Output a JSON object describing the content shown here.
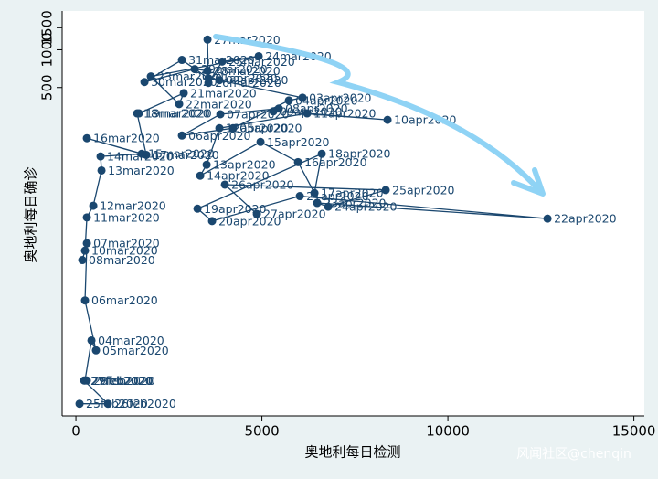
{
  "chart_data": {
    "type": "scatter",
    "x_label": "奥地利每日检测",
    "y_label": "奥地利每日确诊",
    "watermark": "风闻社区@chenqin",
    "color": "#1a476f",
    "log_y": true,
    "xlim": [
      -370,
      15280
    ],
    "ylim": [
      1.2,
      2040
    ],
    "xticks": [
      0,
      5000,
      10000,
      15000
    ],
    "yticks": [
      500,
      1000,
      1500
    ],
    "point_labels": [
      "25feb2020",
      "26feb2020",
      "27feb2020",
      "28feb2020",
      "29feb2020",
      "04mar2020",
      "05mar2020",
      "06mar2020",
      "07mar2020",
      "08mar2020",
      "10mar2020",
      "11mar2020",
      "12mar2020",
      "13mar2020",
      "14mar2020",
      "15mar2020",
      "16mar2020",
      "17mar2020",
      "18mar2020",
      "19mar2020",
      "21mar2020",
      "22mar2020",
      "23mar2020",
      "24mar2020",
      "25mar2020",
      "26mar2020",
      "27mar2020",
      "28mar2020",
      "29mar2020",
      "30mar2020",
      "31mar2020",
      "01apr2020",
      "02apr2020",
      "03apr2020",
      "04apr2020",
      "05apr2020",
      "06apr2020",
      "07apr2020",
      "08apr2020",
      "09apr2020",
      "10apr2020",
      "11apr2020",
      "12apr2020",
      "13apr2020",
      "14apr2020",
      "15apr2020",
      "16apr2020",
      "17apr2020",
      "18apr2020",
      "19apr2020",
      "20apr2020",
      "21apr2020",
      "22apr2020",
      "23apr2020",
      "24apr2020",
      "25apr2020",
      "26apr2020",
      "27apr2020"
    ],
    "x": [
      98,
      860,
      220,
      295,
      245,
      418,
      540,
      245,
      295,
      172,
      245,
      295,
      467,
      688,
      663,
      1769,
      295,
      1892,
      1646,
      1695,
      2899,
      2776,
      2015,
      4914,
      3931,
      3563,
      3538,
      3538,
      3194,
      1843,
      2850,
      3563,
      3857,
      6093,
      5725,
      4226,
      2850,
      3882,
      5455,
      5307,
      8378,
      6216,
      3857,
      3514,
      3342,
      4963,
      5971,
      6413,
      6609,
      3268,
      3661,
      6020,
      12678,
      6486,
      6781,
      8329,
      4005,
      4865
    ],
    "values": [
      1.5,
      1.5,
      2.3,
      2.3,
      2.3,
      4.8,
      4,
      10,
      28.6,
      21,
      25,
      46,
      57,
      109,
      141,
      148,
      197,
      145,
      311,
      311,
      451,
      369,
      613,
      889,
      805,
      544,
      1206,
      680,
      701,
      553,
      830,
      592,
      572,
      415,
      394,
      237,
      207,
      306,
      340,
      323,
      276,
      311,
      237,
      121,
      99,
      184,
      127,
      72,
      148,
      54,
      43,
      68,
      45,
      60,
      56,
      76,
      84,
      49
    ]
  }
}
